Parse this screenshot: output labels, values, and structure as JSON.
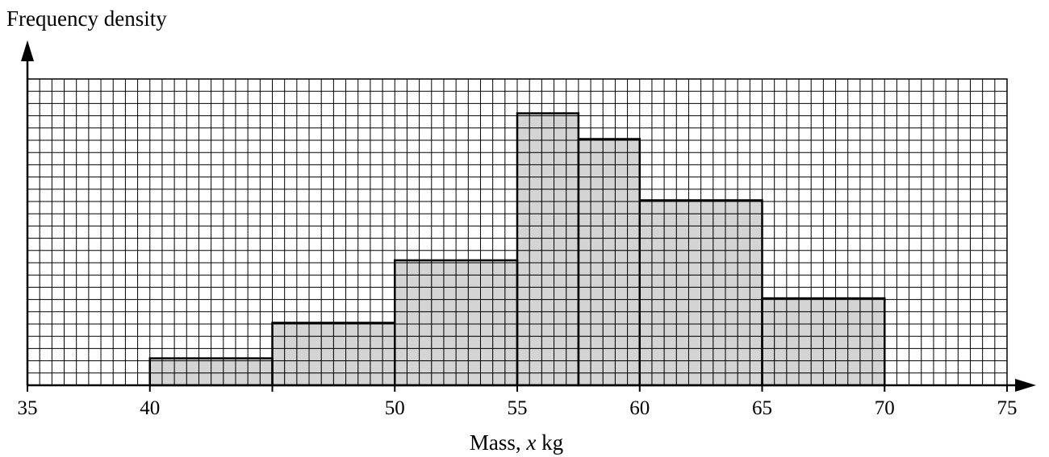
{
  "chart_data": {
    "type": "bar",
    "subtype": "histogram",
    "ylabel": "Frequency density",
    "xlabel": {
      "prefix": "Mass, ",
      "variable": "x",
      "unit": " kg"
    },
    "xlim": [
      35,
      75
    ],
    "ylim": [
      0,
      25
    ],
    "grid": true,
    "x_ticks": [
      "35",
      "40",
      "50",
      "55",
      "60",
      "65",
      "70",
      "75"
    ],
    "bins": [
      {
        "from": 40,
        "to": 45,
        "density": 2.2
      },
      {
        "from": 45,
        "to": 50,
        "density": 5.1
      },
      {
        "from": 50,
        "to": 55,
        "density": 10.2
      },
      {
        "from": 55,
        "to": 57.5,
        "density": 22.2
      },
      {
        "from": 57.5,
        "to": 60,
        "density": 20.1
      },
      {
        "from": 60,
        "to": 65,
        "density": 15.1
      },
      {
        "from": 65,
        "to": 70,
        "density": 7.1
      }
    ],
    "colors": {
      "bar_fill": "#c8c8c8",
      "grid": "#000000",
      "background": "#ffffff"
    }
  }
}
